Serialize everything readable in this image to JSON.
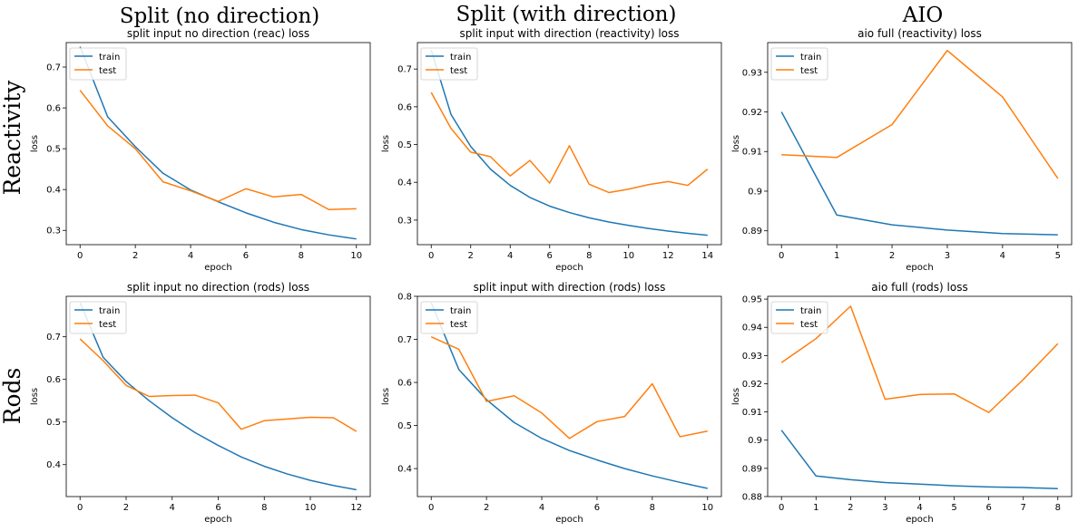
{
  "column_titles": [
    "Split (no direction)",
    "Split (with direction)",
    "AIO"
  ],
  "row_titles": [
    "Reactivity",
    "Rods"
  ],
  "colors": {
    "train": "#1f77b4",
    "test": "#ff7f0e"
  },
  "chart_data": [
    {
      "type": "line",
      "title": "split input no direction (reac) loss",
      "xlabel": "epoch",
      "ylabel": "loss",
      "xlim": [
        -0.5,
        10.5
      ],
      "ylim": [
        0.265,
        0.76
      ],
      "xticks": [
        0,
        2,
        4,
        6,
        8,
        10
      ],
      "yticks": [
        0.3,
        0.4,
        0.5,
        0.6,
        0.7
      ],
      "legend": "upper-left",
      "series": [
        {
          "name": "train",
          "x": [
            0,
            1,
            2,
            3,
            4,
            5,
            6,
            7,
            8,
            9,
            10
          ],
          "values": [
            0.75,
            0.578,
            0.505,
            0.44,
            0.399,
            0.37,
            0.343,
            0.32,
            0.302,
            0.289,
            0.279
          ]
        },
        {
          "name": "test",
          "x": [
            0,
            1,
            2,
            3,
            4,
            5,
            6,
            7,
            8,
            9,
            10
          ],
          "values": [
            0.643,
            0.556,
            0.5,
            0.419,
            0.397,
            0.371,
            0.402,
            0.382,
            0.388,
            0.351,
            0.353
          ]
        }
      ]
    },
    {
      "type": "line",
      "title": "split input with direction (reactivity) loss",
      "xlabel": "epoch",
      "ylabel": "loss",
      "xlim": [
        -0.7,
        14.7
      ],
      "ylim": [
        0.235,
        0.77
      ],
      "xticks": [
        0,
        2,
        4,
        6,
        8,
        10,
        12,
        14
      ],
      "yticks": [
        0.3,
        0.4,
        0.5,
        0.6,
        0.7
      ],
      "legend": "upper-left",
      "series": [
        {
          "name": "train",
          "x": [
            0,
            1,
            2,
            3,
            4,
            5,
            6,
            7,
            8,
            9,
            10,
            11,
            12,
            13,
            14
          ],
          "values": [
            0.75,
            0.58,
            0.495,
            0.435,
            0.392,
            0.36,
            0.337,
            0.32,
            0.306,
            0.295,
            0.286,
            0.278,
            0.271,
            0.265,
            0.26
          ]
        },
        {
          "name": "test",
          "x": [
            0,
            1,
            2,
            3,
            4,
            5,
            6,
            7,
            8,
            9,
            10,
            11,
            12,
            13,
            14
          ],
          "values": [
            0.638,
            0.543,
            0.48,
            0.468,
            0.417,
            0.458,
            0.398,
            0.497,
            0.395,
            0.373,
            0.382,
            0.394,
            0.402,
            0.392,
            0.435
          ]
        }
      ]
    },
    {
      "type": "line",
      "title": "aio full (reactivity) loss",
      "xlabel": "epoch",
      "ylabel": "loss",
      "xlim": [
        -0.25,
        5.25
      ],
      "ylim": [
        0.8865,
        0.9375
      ],
      "xticks": [
        0,
        1,
        2,
        3,
        4,
        5
      ],
      "yticks": [
        0.89,
        0.9,
        0.91,
        0.92,
        0.93
      ],
      "legend": "upper-left",
      "series": [
        {
          "name": "train",
          "x": [
            0,
            1,
            2,
            3,
            4,
            5
          ],
          "values": [
            0.92,
            0.894,
            0.8915,
            0.8902,
            0.8893,
            0.889
          ]
        },
        {
          "name": "test",
          "x": [
            0,
            1,
            2,
            3,
            4,
            5
          ],
          "values": [
            0.9092,
            0.9085,
            0.9168,
            0.9355,
            0.9238,
            0.9032
          ]
        }
      ]
    },
    {
      "type": "line",
      "title": "split input no direction (rods) loss",
      "xlabel": "epoch",
      "ylabel": "loss",
      "xlim": [
        -0.6,
        12.6
      ],
      "ylim": [
        0.325,
        0.795
      ],
      "xticks": [
        0,
        2,
        4,
        6,
        8,
        10,
        12
      ],
      "yticks": [
        0.4,
        0.5,
        0.6,
        0.7
      ],
      "legend": "upper-left",
      "series": [
        {
          "name": "train",
          "x": [
            0,
            1,
            2,
            3,
            4,
            5,
            6,
            7,
            8,
            9,
            10,
            11,
            12
          ],
          "values": [
            0.78,
            0.652,
            0.595,
            0.55,
            0.51,
            0.475,
            0.445,
            0.418,
            0.396,
            0.378,
            0.363,
            0.351,
            0.341
          ]
        },
        {
          "name": "test",
          "x": [
            0,
            1,
            2,
            3,
            4,
            5,
            6,
            7,
            8,
            9,
            10,
            11,
            12
          ],
          "values": [
            0.695,
            0.644,
            0.586,
            0.56,
            0.562,
            0.563,
            0.545,
            0.483,
            0.503,
            0.507,
            0.511,
            0.51,
            0.478
          ]
        }
      ]
    },
    {
      "type": "line",
      "title": "split input with direction (rods) loss",
      "xlabel": "epoch",
      "ylabel": "loss",
      "xlim": [
        -0.5,
        10.5
      ],
      "ylim": [
        0.335,
        0.8
      ],
      "xticks": [
        0,
        2,
        4,
        6,
        8,
        10
      ],
      "yticks": [
        0.4,
        0.5,
        0.6,
        0.7,
        0.8
      ],
      "legend": "upper-left",
      "series": [
        {
          "name": "train",
          "x": [
            0,
            1,
            2,
            3,
            4,
            5,
            6,
            7,
            8,
            9,
            10
          ],
          "values": [
            0.785,
            0.63,
            0.56,
            0.507,
            0.47,
            0.442,
            0.42,
            0.4,
            0.383,
            0.368,
            0.354
          ]
        },
        {
          "name": "test",
          "x": [
            0,
            1,
            2,
            3,
            4,
            5,
            6,
            7,
            8,
            9,
            10
          ],
          "values": [
            0.706,
            0.677,
            0.556,
            0.569,
            0.529,
            0.47,
            0.509,
            0.521,
            0.597,
            0.474,
            0.487
          ]
        }
      ]
    },
    {
      "type": "line",
      "title": "aio full (rods) loss",
      "xlabel": "epoch",
      "ylabel": "loss",
      "xlim": [
        -0.4,
        8.4
      ],
      "ylim": [
        0.88,
        0.951
      ],
      "xticks": [
        0,
        1,
        2,
        3,
        4,
        5,
        6,
        7,
        8
      ],
      "yticks": [
        0.88,
        0.89,
        0.9,
        0.91,
        0.92,
        0.93,
        0.94,
        0.95
      ],
      "legend": "upper-left",
      "series": [
        {
          "name": "train",
          "x": [
            0,
            1,
            2,
            3,
            4,
            5,
            6,
            7,
            8
          ],
          "values": [
            0.9035,
            0.8873,
            0.886,
            0.885,
            0.8844,
            0.8838,
            0.8834,
            0.8832,
            0.8828
          ]
        },
        {
          "name": "test",
          "x": [
            0,
            1,
            2,
            3,
            4,
            5,
            6,
            7,
            8
          ],
          "values": [
            0.9275,
            0.936,
            0.9475,
            0.9145,
            0.9162,
            0.9164,
            0.9098,
            0.9215,
            0.9342
          ]
        }
      ]
    }
  ]
}
